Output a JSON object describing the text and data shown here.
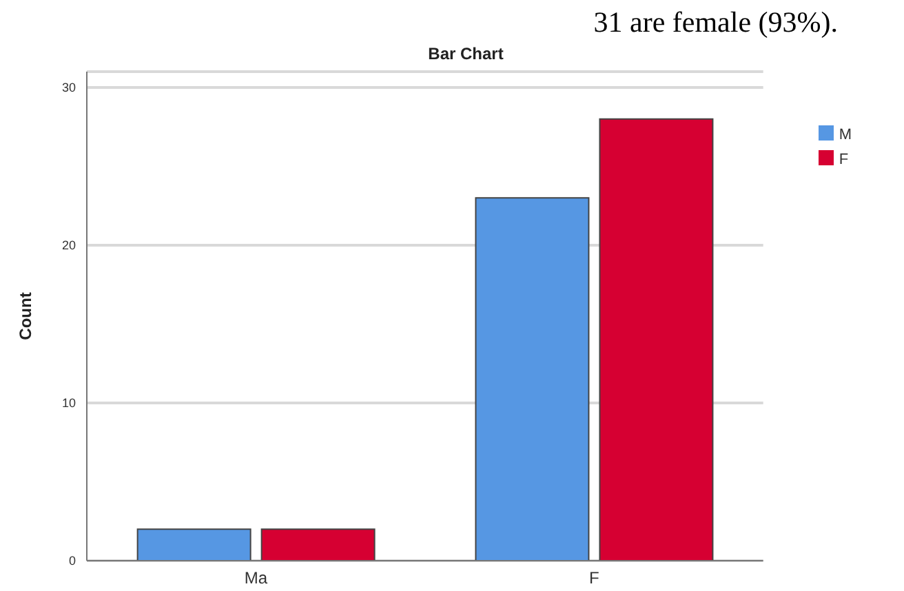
{
  "chart_data": {
    "type": "bar",
    "title": "Bar Chart",
    "ylabel": "Count",
    "annotations": [
      "31 are female (93%)."
    ],
    "categories": [
      "Ma",
      "F"
    ],
    "series": [
      {
        "name": "M",
        "color": "#5697e3",
        "values": [
          2,
          23
        ]
      },
      {
        "name": "F",
        "color": "#d60032",
        "values": [
          2,
          28
        ]
      }
    ],
    "ylim": [
      0,
      31
    ],
    "yticks": [
      0,
      10,
      20,
      30
    ],
    "grid": "y",
    "legend": "right"
  }
}
